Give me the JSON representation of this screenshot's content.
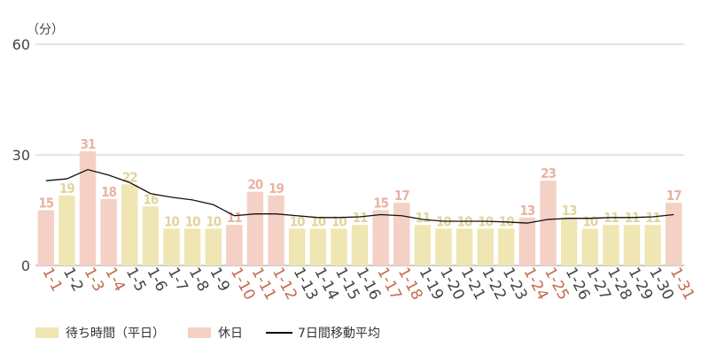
{
  "chart_data": {
    "type": "bar",
    "unit_label": "（分）",
    "ylim": [
      0,
      60
    ],
    "yticks": [
      0,
      30,
      60
    ],
    "categories": [
      "1-1",
      "1-2",
      "1-3",
      "1-4",
      "1-5",
      "1-6",
      "1-7",
      "1-8",
      "1-9",
      "1-10",
      "1-11",
      "1-12",
      "1-13",
      "1-14",
      "1-15",
      "1-16",
      "1-17",
      "1-18",
      "1-19",
      "1-20",
      "1-21",
      "1-22",
      "1-23",
      "1-24",
      "1-25",
      "1-26",
      "1-27",
      "1-28",
      "1-29",
      "1-30",
      "1-31"
    ],
    "values": [
      15,
      19,
      31,
      18,
      22,
      16,
      10,
      10,
      10,
      11,
      20,
      19,
      10,
      10,
      10,
      11,
      15,
      17,
      11,
      10,
      10,
      10,
      10,
      13,
      23,
      13,
      10,
      11,
      11,
      11,
      17
    ],
    "holiday": [
      true,
      false,
      true,
      true,
      false,
      false,
      false,
      false,
      false,
      true,
      true,
      true,
      false,
      false,
      false,
      false,
      true,
      true,
      false,
      false,
      false,
      false,
      false,
      true,
      true,
      false,
      false,
      false,
      false,
      false,
      true
    ],
    "moving_average": [
      23.0,
      23.5,
      26.0,
      24.5,
      22.5,
      19.5,
      18.5,
      17.8,
      16.5,
      13.5,
      14.0,
      14.0,
      13.5,
      13.0,
      13.0,
      13.2,
      13.8,
      13.5,
      12.5,
      12.0,
      12.0,
      12.0,
      11.8,
      11.5,
      12.5,
      12.8,
      12.8,
      13.0,
      13.0,
      13.2,
      13.8
    ],
    "legend": [
      {
        "name": "待ち時間（平日）",
        "color": "#efe6b4"
      },
      {
        "name": "休日",
        "color": "#f5d0c4"
      },
      {
        "name": "7日間移動平均",
        "color": "#000000"
      }
    ],
    "colors": {
      "weekday_bar": "#efe6b4",
      "holiday_bar": "#f5d0c4",
      "weekday_label": "#e2d49a",
      "holiday_label": "#e8b3a1",
      "weekday_tick": "#444444",
      "holiday_tick": "#c46a4e",
      "grid": "#c8c8c8"
    }
  }
}
